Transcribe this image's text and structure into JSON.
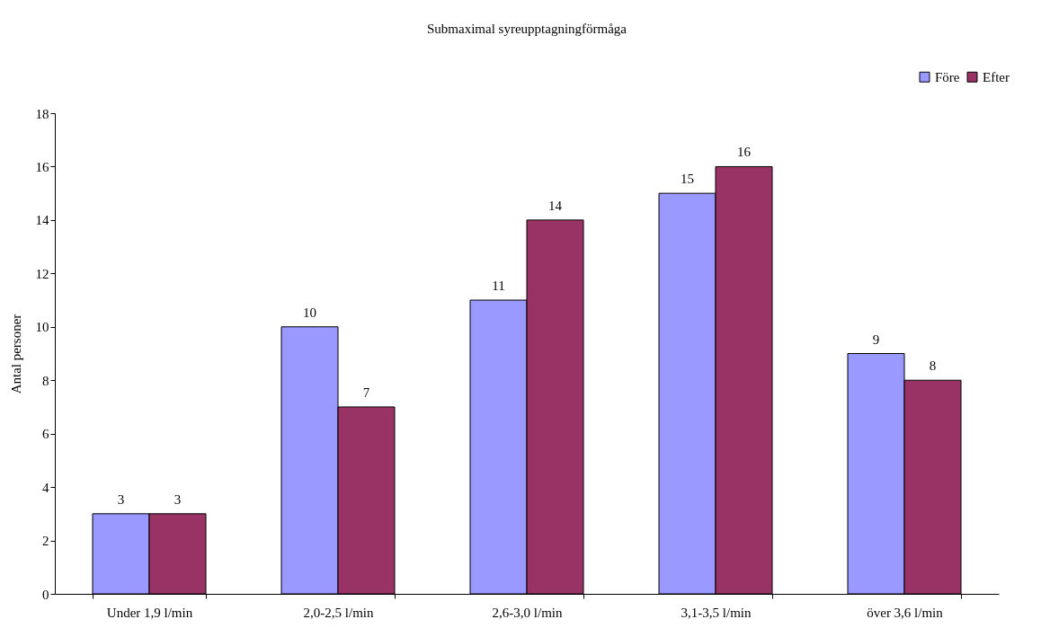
{
  "chart_data": {
    "type": "bar",
    "title": "Submaximal syreupptagningförmåga",
    "ylabel": "Antal personer",
    "categories": [
      "Under 1,9 l/min",
      "2,0-2,5 l/min",
      "2,6-3,0 l/min",
      "3,1-3,5 l/min",
      "över 3,6 l/min"
    ],
    "series": [
      {
        "name": "Före",
        "color": "#9999ff",
        "values": [
          3,
          10,
          11,
          15,
          9
        ]
      },
      {
        "name": "Efter",
        "color": "#993366",
        "values": [
          3,
          7,
          14,
          16,
          8
        ]
      }
    ],
    "ylim": [
      0,
      18
    ],
    "yticks": [
      0,
      2,
      4,
      6,
      8,
      10,
      12,
      14,
      16,
      18
    ],
    "data_labels": true,
    "legend": "top right",
    "grid": false
  }
}
